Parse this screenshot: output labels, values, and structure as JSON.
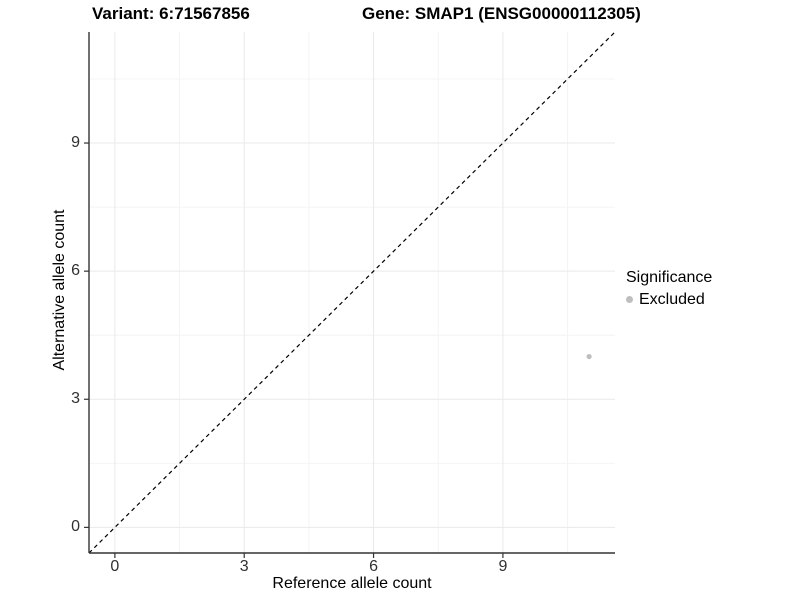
{
  "header": {
    "variant_title": "Variant: 6:71567856",
    "gene_title": "Gene: SMAP1 (ENSG00000112305)"
  },
  "chart_data": {
    "type": "scatter",
    "xlabel": "Reference allele count",
    "ylabel": "Alternative allele count",
    "x_ticks": [
      0,
      3,
      6,
      9
    ],
    "y_ticks": [
      0,
      3,
      6,
      9
    ],
    "xlim": [
      -0.6,
      11.6
    ],
    "ylim": [
      -0.6,
      11.6
    ],
    "grid": {
      "major": true,
      "minor": true
    },
    "identity_line": {
      "style": "dashed",
      "equation": "y = x",
      "from": [
        -0.6,
        -0.6
      ],
      "to": [
        11.6,
        11.6
      ]
    },
    "series": [
      {
        "name": "Excluded",
        "color": "#bebebe",
        "points": [
          [
            11,
            4
          ]
        ]
      }
    ],
    "legend": {
      "title": "Significance",
      "position": "right",
      "items": [
        {
          "label": "Excluded",
          "color": "#bebebe"
        }
      ]
    }
  },
  "colors": {
    "axis_line": "#333333",
    "tick_mark": "#333333",
    "tick_text": "#303030",
    "grid_major": "#e9e9e9",
    "grid_minor": "#f4f4f4",
    "identity_line": "#000000",
    "point_fill": "#bebebe"
  }
}
